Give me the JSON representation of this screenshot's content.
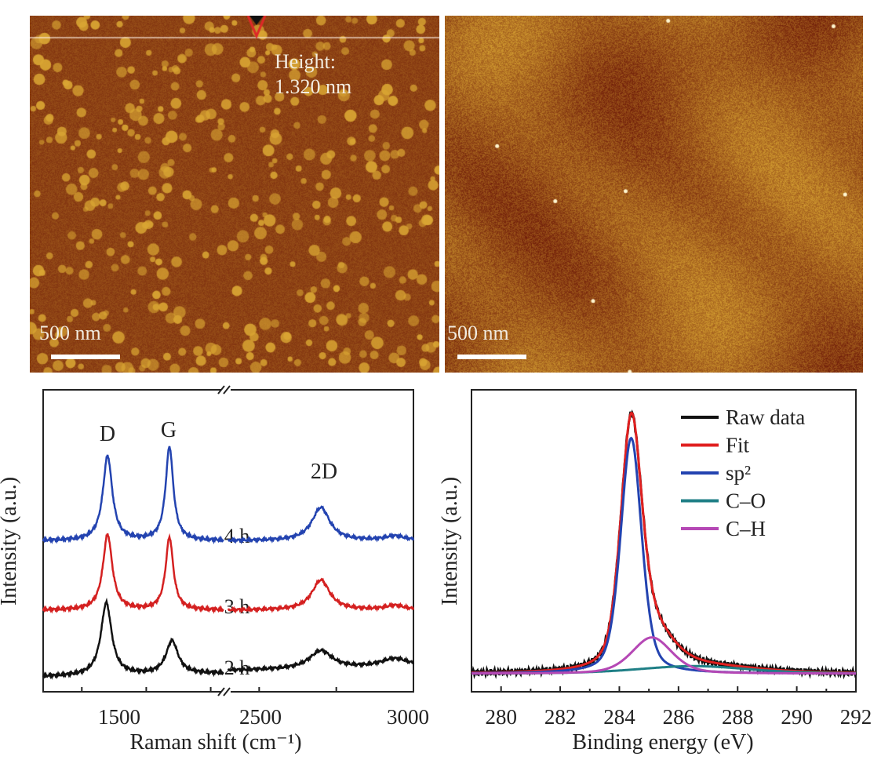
{
  "afm_images": [
    {
      "annotation_title": "Height:",
      "annotation_value": "1.320 nm",
      "scale_bar_label": "500 nm",
      "colors": {
        "dark": "#6e1a08",
        "light": "#d9a533"
      }
    },
    {
      "scale_bar_label": "500 nm",
      "colors": {
        "dark": "#6e1a08",
        "light": "#d9a533"
      }
    }
  ],
  "chart_data": [
    {
      "type": "line",
      "xlabel": "Raman shift (cm⁻¹)",
      "ylabel": "Intensity (a.u.)",
      "x_ticks": [
        "1500",
        "2500",
        "3000"
      ],
      "x_segments": [
        [
          1100,
          1800
        ],
        [
          2400,
          3000
        ]
      ],
      "axis_break": true,
      "grid": false,
      "peak_labels": [
        {
          "text": "D",
          "x": 1350
        },
        {
          "text": "G",
          "x": 1590
        },
        {
          "text": "2D",
          "x": 2700
        }
      ],
      "series": [
        {
          "name": "4 h",
          "color": "#2343b0",
          "baseline": 50,
          "baseline_end": 50,
          "peaks": [
            {
              "x": 1350,
              "height": 28,
              "hwhm": 22
            },
            {
              "x": 1590,
              "height": 31,
              "hwhm": 18
            },
            {
              "x": 2700,
              "height": 11,
              "hwhm": 35
            },
            {
              "x": 2940,
              "height": 1.5,
              "hwhm": 40
            }
          ]
        },
        {
          "name": "3 h",
          "color": "#d42020",
          "baseline": 27,
          "baseline_end": 27,
          "peaks": [
            {
              "x": 1350,
              "height": 25,
              "hwhm": 22
            },
            {
              "x": 1590,
              "height": 24,
              "hwhm": 18
            },
            {
              "x": 2700,
              "height": 10,
              "hwhm": 35
            },
            {
              "x": 2940,
              "height": 1.5,
              "hwhm": 40
            }
          ]
        },
        {
          "name": "2 h",
          "color": "#111111",
          "baseline": 5,
          "baseline_end": 8,
          "peaks": [
            {
              "x": 1345,
              "height": 24,
              "hwhm": 25
            },
            {
              "x": 1600,
              "height": 11,
              "hwhm": 28
            },
            {
              "x": 2700,
              "height": 6,
              "hwhm": 45
            },
            {
              "x": 2940,
              "height": 3,
              "hwhm": 60
            }
          ]
        }
      ],
      "ylim": [
        0,
        100
      ]
    },
    {
      "type": "line",
      "xlabel": "Binding energy (eV)",
      "ylabel": "Intensity (a.u.)",
      "xlim": [
        279,
        292
      ],
      "x_ticks": [
        "280",
        "282",
        "284",
        "286",
        "288",
        "290",
        "292"
      ],
      "ylim": [
        0,
        100
      ],
      "grid": false,
      "legend_position": "top-right",
      "baseline": 6,
      "components": [
        {
          "name": "sp²",
          "color": "#2343b0",
          "center": 284.4,
          "height": 78,
          "hwhm": 0.42
        },
        {
          "name": "C–O",
          "color": "#1f7f86",
          "center": 286.5,
          "height": 2.5,
          "hwhm": 2.2
        },
        {
          "name": "C–H",
          "color": "#b548b5",
          "center": 285.1,
          "height": 12,
          "hwhm": 0.8
        }
      ],
      "series": [
        {
          "name": "Raw data",
          "color": "#111111"
        },
        {
          "name": "Fit",
          "color": "#e02020"
        },
        {
          "name": "sp²",
          "color": "#2343b0"
        },
        {
          "name": "C–O",
          "color": "#1f7f86"
        },
        {
          "name": "C–H",
          "color": "#b548b5"
        }
      ]
    }
  ]
}
